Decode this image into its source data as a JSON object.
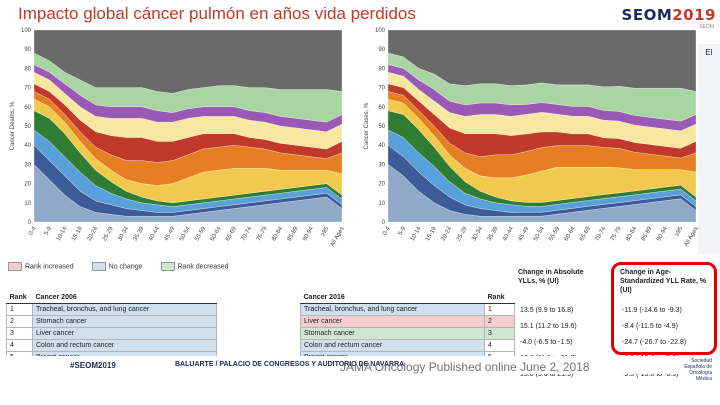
{
  "slide": {
    "title": "Impacto global cáncer pulmón en años vida perdidos",
    "logo_main": "SEOM",
    "logo_year": "2019",
    "logo_sub": "SEOM",
    "side_icon": "EI",
    "footer_tag": "#SEOM2019",
    "footer_venue": "BALUARTE / PALACIO DE CONGRESOS Y AUDITORIO DE NAVARRA",
    "citation": "JAMA Oncology Published online June 2, 2018",
    "footer_logo": "Sociedad Española de Oncología Médica"
  },
  "colors": {
    "title": "#c0392b",
    "highlight_box": "#e00000",
    "increased": "#f2cfcf",
    "no_change": "#cfe0ef",
    "decreased": "#cfe6cf"
  },
  "legend": {
    "increased": "Rank increased",
    "no_change": "No change",
    "decreased": "Rank decreased"
  },
  "chart_data": [
    {
      "type": "area",
      "stacked": true,
      "title": "",
      "ylabel": "Cancer Deaths, %",
      "xlabel": "",
      "ylim": [
        0,
        100
      ],
      "yticks": [
        0,
        10,
        20,
        30,
        40,
        50,
        60,
        70,
        80,
        90,
        100
      ],
      "categories": [
        "0-4",
        "5-9",
        "10-14",
        "15-19",
        "20-24",
        "25-29",
        "30-34",
        "35-39",
        "40-44",
        "45-49",
        "50-54",
        "55-59",
        "60-64",
        "65-69",
        "70-74",
        "75-79",
        "80-84",
        "85-89",
        "90-94",
        "≥95",
        "All Ages"
      ],
      "series": [
        {
          "name": "Bottom",
          "color": "#8fa9c9",
          "values": [
            30,
            22,
            14,
            8,
            5,
            4,
            3,
            3,
            3,
            3,
            4,
            5,
            6,
            7,
            8,
            9,
            10,
            11,
            12,
            13,
            7
          ]
        },
        {
          "name": "S2",
          "color": "#3d5a99",
          "values": [
            10,
            10,
            10,
            8,
            6,
            5,
            4,
            3,
            2,
            2,
            2,
            2,
            2,
            2,
            2,
            2,
            2,
            2,
            2,
            2,
            2
          ]
        },
        {
          "name": "S3",
          "color": "#5aa0d8",
          "values": [
            8,
            10,
            10,
            10,
            8,
            6,
            5,
            4,
            4,
            3,
            3,
            3,
            3,
            3,
            3,
            3,
            3,
            3,
            3,
            3,
            3
          ]
        },
        {
          "name": "S4",
          "color": "#2e7d32",
          "values": [
            10,
            12,
            12,
            10,
            8,
            6,
            4,
            3,
            2,
            2,
            2,
            2,
            2,
            2,
            2,
            2,
            2,
            2,
            2,
            2,
            2
          ]
        },
        {
          "name": "S5",
          "color": "#f2c94c",
          "values": [
            6,
            6,
            6,
            6,
            6,
            6,
            6,
            7,
            8,
            10,
            12,
            14,
            14,
            14,
            13,
            12,
            10,
            9,
            8,
            7,
            11
          ]
        },
        {
          "name": "S6",
          "color": "#e67e22",
          "values": [
            4,
            4,
            4,
            5,
            6,
            8,
            10,
            12,
            12,
            12,
            12,
            12,
            12,
            12,
            11,
            10,
            9,
            8,
            7,
            6,
            11
          ]
        },
        {
          "name": "S7",
          "color": "#c0392b",
          "values": [
            4,
            4,
            5,
            6,
            8,
            10,
            12,
            12,
            11,
            10,
            9,
            8,
            7,
            6,
            5,
            5,
            5,
            5,
            5,
            5,
            6
          ]
        },
        {
          "name": "S8",
          "color": "#f7e7a1",
          "values": [
            6,
            6,
            6,
            7,
            8,
            9,
            10,
            10,
            10,
            10,
            10,
            9,
            9,
            9,
            9,
            9,
            9,
            9,
            9,
            9,
            9
          ]
        },
        {
          "name": "S9",
          "color": "#9b59b6",
          "values": [
            4,
            4,
            5,
            6,
            6,
            6,
            6,
            6,
            6,
            5,
            5,
            5,
            5,
            5,
            5,
            5,
            5,
            5,
            5,
            5,
            5
          ]
        },
        {
          "name": "S10",
          "color": "#a8d5a2",
          "values": [
            6,
            6,
            6,
            8,
            9,
            10,
            10,
            10,
            10,
            10,
            10,
            10,
            11,
            11,
            12,
            13,
            14,
            15,
            16,
            17,
            12
          ]
        },
        {
          "name": "Top",
          "color": "#6a6a6a",
          "values": [
            12,
            16,
            22,
            26,
            30,
            30,
            30,
            30,
            32,
            33,
            31,
            30,
            29,
            29,
            30,
            30,
            31,
            31,
            31,
            31,
            32
          ]
        }
      ]
    },
    {
      "type": "area",
      "stacked": true,
      "title": "",
      "ylabel": "Cancer Cases, %",
      "xlabel": "",
      "ylim": [
        0,
        100
      ],
      "yticks": [
        0,
        10,
        20,
        30,
        40,
        50,
        60,
        70,
        80,
        90,
        100
      ],
      "categories": [
        "0-4",
        "5-9",
        "10-14",
        "15-19",
        "20-24",
        "25-29",
        "30-34",
        "35-39",
        "40-44",
        "45-49",
        "50-54",
        "55-59",
        "60-64",
        "65-69",
        "70-74",
        "75-79",
        "80-84",
        "85-89",
        "90-94",
        "≥95",
        "All Ages"
      ],
      "series": [
        {
          "name": "Bottom",
          "color": "#8fa9c9",
          "values": [
            30,
            24,
            16,
            10,
            6,
            4,
            3,
            3,
            3,
            3,
            3,
            4,
            5,
            6,
            7,
            8,
            9,
            10,
            11,
            12,
            6
          ]
        },
        {
          "name": "S2",
          "color": "#3d5a99",
          "values": [
            10,
            10,
            10,
            9,
            7,
            5,
            4,
            3,
            2,
            2,
            2,
            2,
            2,
            2,
            2,
            2,
            2,
            2,
            2,
            2,
            2
          ]
        },
        {
          "name": "S3",
          "color": "#5aa0d8",
          "values": [
            8,
            10,
            10,
            10,
            8,
            6,
            5,
            4,
            4,
            3,
            3,
            3,
            3,
            3,
            3,
            3,
            3,
            3,
            3,
            3,
            3
          ]
        },
        {
          "name": "S4",
          "color": "#2e7d32",
          "values": [
            10,
            12,
            12,
            10,
            8,
            6,
            4,
            3,
            2,
            2,
            2,
            2,
            2,
            2,
            2,
            2,
            2,
            2,
            2,
            2,
            2
          ]
        },
        {
          "name": "S5",
          "color": "#f2c94c",
          "values": [
            6,
            6,
            6,
            6,
            6,
            7,
            8,
            10,
            12,
            14,
            16,
            17,
            16,
            15,
            14,
            13,
            11,
            10,
            9,
            8,
            13
          ]
        },
        {
          "name": "S6",
          "color": "#e67e22",
          "values": [
            4,
            4,
            4,
            5,
            6,
            8,
            10,
            12,
            12,
            12,
            12,
            11,
            11,
            11,
            10,
            10,
            9,
            8,
            7,
            6,
            10
          ]
        },
        {
          "name": "S7",
          "color": "#c0392b",
          "values": [
            4,
            4,
            5,
            6,
            8,
            10,
            12,
            11,
            10,
            9,
            8,
            7,
            6,
            6,
            5,
            5,
            5,
            5,
            5,
            5,
            6
          ]
        },
        {
          "name": "S8",
          "color": "#f7e7a1",
          "values": [
            6,
            6,
            6,
            7,
            8,
            9,
            10,
            10,
            10,
            10,
            10,
            9,
            9,
            9,
            9,
            9,
            9,
            9,
            9,
            9,
            9
          ]
        },
        {
          "name": "S9",
          "color": "#9b59b6",
          "values": [
            4,
            4,
            5,
            6,
            6,
            6,
            6,
            6,
            6,
            5,
            5,
            5,
            5,
            5,
            5,
            5,
            5,
            5,
            5,
            5,
            5
          ]
        },
        {
          "name": "S10",
          "color": "#a8d5a2",
          "values": [
            6,
            6,
            6,
            8,
            9,
            10,
            10,
            10,
            10,
            10,
            10,
            10,
            11,
            11,
            12,
            13,
            14,
            15,
            16,
            17,
            12
          ]
        },
        {
          "name": "Top",
          "color": "#6a6a6a",
          "values": [
            12,
            14,
            20,
            23,
            28,
            29,
            28,
            28,
            29,
            28,
            27,
            28,
            28,
            28,
            29,
            29,
            30,
            30,
            30,
            30,
            32
          ]
        }
      ]
    }
  ],
  "table_left": {
    "headers": [
      "Rank",
      "Cancer 2006"
    ],
    "rows": [
      {
        "rank": "1",
        "cancer": "Tracheal, bronchus, and lung cancer"
      },
      {
        "rank": "2",
        "cancer": "Stomach cancer"
      },
      {
        "rank": "3",
        "cancer": "Liver cancer"
      },
      {
        "rank": "4",
        "cancer": "Colon and rectum cancer"
      },
      {
        "rank": "5",
        "cancer": "Breast cancer"
      }
    ]
  },
  "table_right": {
    "headers": [
      "Cancer 2016",
      "Rank"
    ],
    "rows": [
      {
        "cancer": "Tracheal, bronchus, and lung cancer",
        "rank": "1",
        "status": "none"
      },
      {
        "cancer": "Liver cancer",
        "rank": "2",
        "status": "increased"
      },
      {
        "cancer": "Stomach cancer",
        "rank": "3",
        "status": "decreased"
      },
      {
        "cancer": "Colon and rectum cancer",
        "rank": "4",
        "status": "none"
      },
      {
        "cancer": "Breast cancer",
        "rank": "5",
        "status": "none"
      }
    ]
  },
  "change_abs": {
    "header": "Change in Absolute YLLs, % (UI)",
    "values": [
      "13.5 (9.9 to 16.8)",
      "15.1 (11.2 to 19.6)",
      "-4.0 (-6.5 to -1.5)",
      "17.0 (11.1 to 21.7)",
      "13.8 (5.6 to 21.9)"
    ]
  },
  "change_age": {
    "header": "Change in Age-Standardized YLL Rate, % (UI)",
    "values": [
      "-11.9 (-14.6 to -9.3)",
      "-8.4 (-11.5 to -4.9)",
      "-24.7 (-26.7 to -22.8)",
      "-8.9 (-13.4 to -5.3)",
      "-9.5 (-15.0 to -3.5)"
    ]
  }
}
